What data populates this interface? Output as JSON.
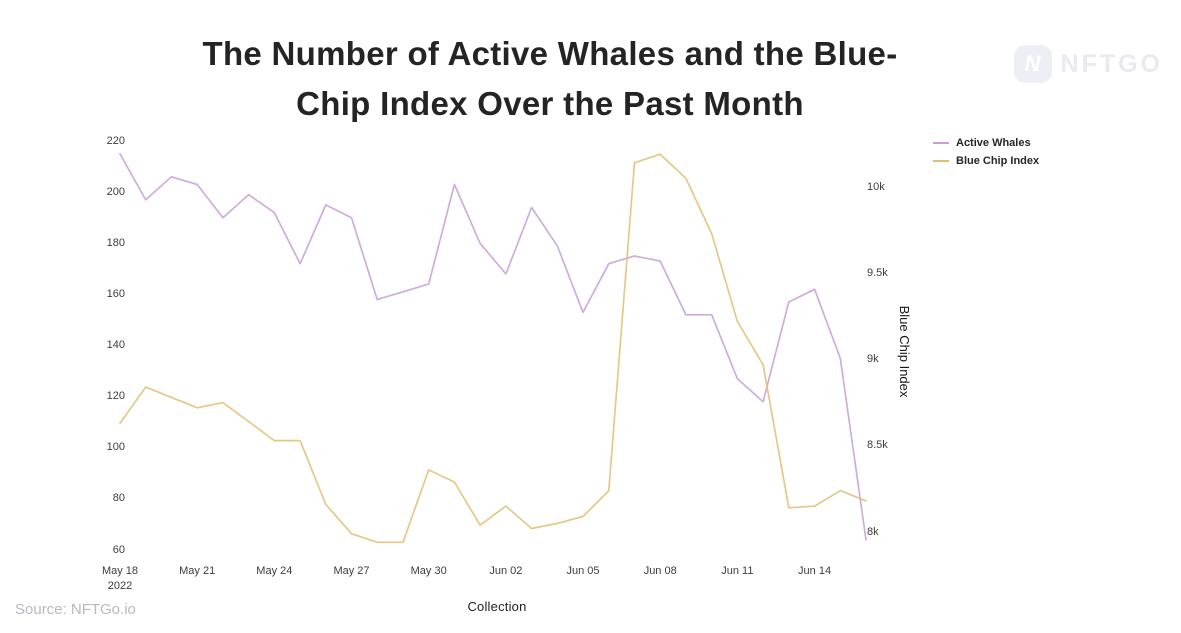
{
  "page": {
    "title_line1": "The Number of Active Whales and the Blue-",
    "title_line2": "Chip Index Over the Past Month",
    "source": "Source: NFTGo.io",
    "logo_icon_letter": "N",
    "logo_text": "NFTGO"
  },
  "legend": [
    {
      "label": "Active Whales",
      "color": "#c69fd7"
    },
    {
      "label": "Blue Chip Index",
      "color": "#e3bd72"
    }
  ],
  "chart_data": {
    "type": "line",
    "title": "The Number of Active Whales and the Blue-Chip Index Over the Past Month",
    "x": [
      "May 18",
      "May 19",
      "May 20",
      "May 21",
      "May 22",
      "May 23",
      "May 24",
      "May 25",
      "May 26",
      "May 27",
      "May 28",
      "May 29",
      "May 30",
      "May 31",
      "Jun 01",
      "Jun 02",
      "Jun 03",
      "Jun 04",
      "Jun 05",
      "Jun 06",
      "Jun 07",
      "Jun 08",
      "Jun 09",
      "Jun 10",
      "Jun 11",
      "Jun 12",
      "Jun 13",
      "Jun 14",
      "Jun 15",
      "Jun 16"
    ],
    "series": [
      {
        "name": "Active Whales",
        "axis": "left",
        "color": "#c69fd7",
        "values": [
          215,
          197,
          206,
          203,
          190,
          199,
          192,
          172,
          195,
          190,
          158,
          161,
          164,
          203,
          180,
          168,
          194,
          179,
          153,
          172,
          175,
          173,
          152,
          152,
          127,
          118,
          157,
          162,
          135,
          64
        ]
      },
      {
        "name": "Blue Chip Index",
        "axis": "right",
        "color": "#e3bd72",
        "values": [
          8630,
          8840,
          8780,
          8720,
          8750,
          8640,
          8530,
          8530,
          8160,
          7990,
          7940,
          7940,
          8360,
          8290,
          8040,
          8150,
          8020,
          8050,
          8090,
          8240,
          10140,
          10190,
          10050,
          9730,
          9220,
          8970,
          8140,
          8150,
          8240,
          8180
        ]
      }
    ],
    "left_axis": {
      "ticks": [
        220,
        200,
        180,
        160,
        140,
        120,
        100,
        80,
        60
      ],
      "range": [
        60,
        220
      ]
    },
    "right_axis": {
      "title": "Blue Chip Index",
      "ticks": [
        {
          "label": "10k",
          "value": 10000
        },
        {
          "label": "9.5k",
          "value": 9500
        },
        {
          "label": "9k",
          "value": 9000
        },
        {
          "label": "8.5k",
          "value": 8500
        },
        {
          "label": "8k",
          "value": 8000
        }
      ],
      "range": [
        8000,
        10000
      ]
    },
    "x_axis": {
      "title": "Collection",
      "ticks": [
        {
          "index": 0,
          "label": "May 18",
          "sublabel": "2022"
        },
        {
          "index": 3,
          "label": "May 21"
        },
        {
          "index": 6,
          "label": "May 24"
        },
        {
          "index": 9,
          "label": "May 27"
        },
        {
          "index": 12,
          "label": "May 30"
        },
        {
          "index": 15,
          "label": "Jun 02"
        },
        {
          "index": 18,
          "label": "Jun 05"
        },
        {
          "index": 21,
          "label": "Jun 08"
        },
        {
          "index": 24,
          "label": "Jun 11"
        },
        {
          "index": 27,
          "label": "Jun 14"
        }
      ]
    },
    "legend_position": "top-right",
    "grid": false
  }
}
